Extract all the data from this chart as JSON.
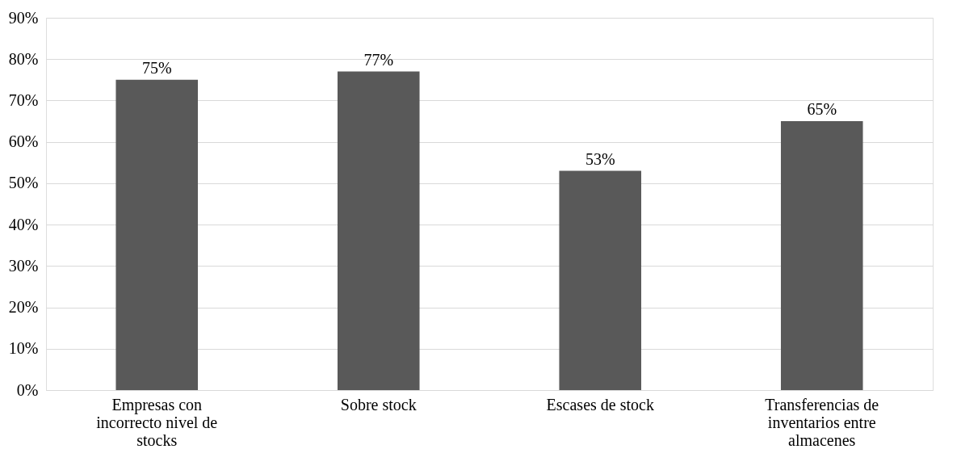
{
  "chart_data": {
    "type": "bar",
    "categories": [
      "Empresas con incorrecto nivel de stocks",
      "Sobre stock",
      "Escases de stock",
      "Transferencias de inventarios entre almacenes"
    ],
    "values": [
      75,
      77,
      53,
      65
    ],
    "color": "#595959",
    "value_labels": [
      "75%",
      "77%",
      "53%",
      "65%"
    ],
    "ylim": [
      0,
      90
    ],
    "yticks": [
      {
        "value": 0,
        "label": "0%"
      },
      {
        "value": 10,
        "label": "10%"
      },
      {
        "value": 20,
        "label": "20%"
      },
      {
        "value": 30,
        "label": "30%"
      },
      {
        "value": 40,
        "label": "40%"
      },
      {
        "value": 50,
        "label": "50%"
      },
      {
        "value": 60,
        "label": "60%"
      },
      {
        "value": 70,
        "label": "70%"
      },
      {
        "value": 80,
        "label": "80%"
      },
      {
        "value": 90,
        "label": "90%"
      }
    ],
    "grid": "y"
  }
}
